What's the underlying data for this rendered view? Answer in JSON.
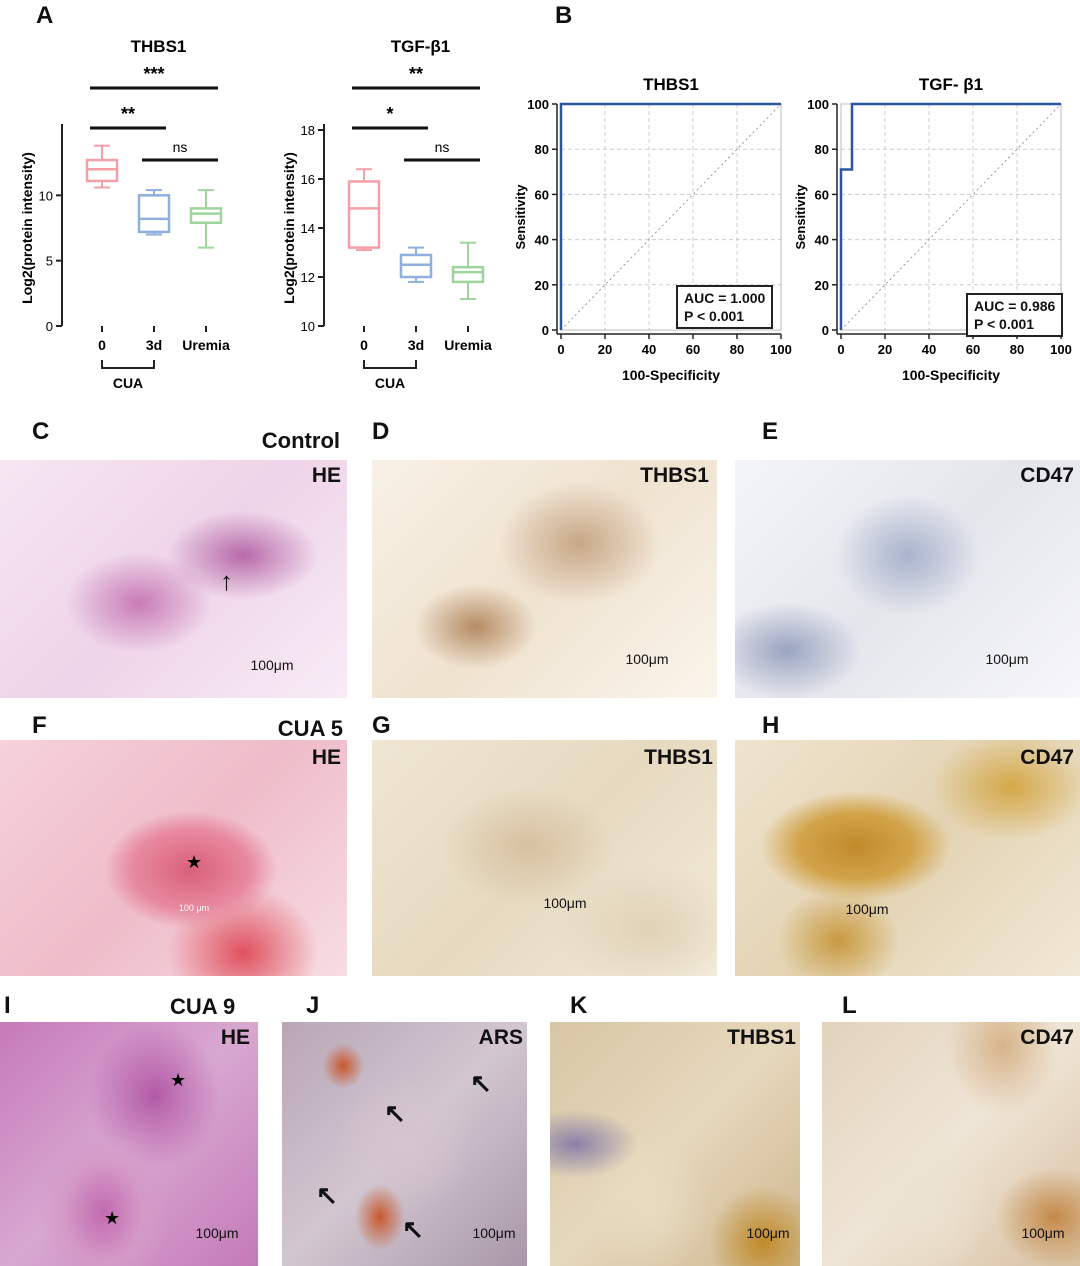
{
  "panels": {
    "A": "A",
    "B": "B",
    "C": "C",
    "D": "D",
    "E": "E",
    "F": "F",
    "G": "G",
    "H": "H",
    "I": "I",
    "J": "J",
    "K": "K",
    "L": "L"
  },
  "colors": {
    "day0": "#f4a0a6",
    "day3": "#8fb0de",
    "uremia": "#9fd49a",
    "roc": "#2a55a0"
  },
  "chart_data": [
    {
      "type": "box",
      "title": "THBS1",
      "ylabel": "Log2(protein intensity)",
      "ylim": [
        0,
        15
      ],
      "yticks": [
        "0",
        "5",
        "10"
      ],
      "categories": [
        "0",
        "3d",
        "Uremia"
      ],
      "group_label": "CUA",
      "boxes": [
        {
          "min": 10.6,
          "q1": 11.1,
          "median": 12.0,
          "q3": 12.7,
          "max": 13.8
        },
        {
          "min": 7.0,
          "q1": 7.2,
          "median": 8.2,
          "q3": 10.0,
          "max": 10.4
        },
        {
          "min": 6.0,
          "q1": 7.9,
          "median": 8.6,
          "q3": 9.0,
          "max": 10.4
        }
      ],
      "significance": [
        {
          "from": 0,
          "to": 2,
          "label": "***"
        },
        {
          "from": 0,
          "to": 1,
          "label": "**"
        },
        {
          "from": 1,
          "to": 2,
          "label": "ns"
        }
      ]
    },
    {
      "type": "box",
      "title": "TGF-β1",
      "ylabel": "Log2(protein intensity)",
      "ylim": [
        10,
        18
      ],
      "yticks": [
        "10",
        "12",
        "14",
        "16",
        "18"
      ],
      "categories": [
        "0",
        "3d",
        "Uremia"
      ],
      "group_label": "CUA",
      "boxes": [
        {
          "min": 13.1,
          "q1": 13.2,
          "median": 14.8,
          "q3": 15.9,
          "max": 16.4
        },
        {
          "min": 11.8,
          "q1": 12.0,
          "median": 12.5,
          "q3": 12.9,
          "max": 13.2
        },
        {
          "min": 11.1,
          "q1": 11.8,
          "median": 12.2,
          "q3": 12.4,
          "max": 13.4
        }
      ],
      "significance": [
        {
          "from": 0,
          "to": 2,
          "label": "**"
        },
        {
          "from": 0,
          "to": 1,
          "label": "*"
        },
        {
          "from": 1,
          "to": 2,
          "label": "ns"
        }
      ]
    },
    {
      "type": "line",
      "title": "THBS1",
      "xlabel": "100-Specificity",
      "ylabel": "Sensitivity",
      "xlim": [
        0,
        100
      ],
      "ylim": [
        0,
        100
      ],
      "ticks": [
        "0",
        "20",
        "40",
        "60",
        "80",
        "100"
      ],
      "x": [
        0,
        0,
        100
      ],
      "y": [
        0,
        100,
        100
      ],
      "auc_text": "AUC = 1.000",
      "p_text": "P < 0.001"
    },
    {
      "type": "line",
      "title": "TGF- β1",
      "xlabel": "100-Specificity",
      "ylabel": "Sensitivity",
      "xlim": [
        0,
        100
      ],
      "ylim": [
        0,
        100
      ],
      "ticks": [
        "0",
        "20",
        "40",
        "60",
        "80",
        "100"
      ],
      "x": [
        0,
        0,
        5,
        5,
        100
      ],
      "y": [
        0,
        71,
        71,
        100,
        100
      ],
      "auc_text": "AUC = 0.986",
      "p_text": "P < 0.001"
    }
  ],
  "images": {
    "C": {
      "group": "Control",
      "stain": "HE",
      "scale": "100μm"
    },
    "D": {
      "stain": "THBS1",
      "scale": "100μm"
    },
    "E": {
      "stain": "CD47",
      "scale": "100μm"
    },
    "F": {
      "group": "CUA 5",
      "stain": "HE",
      "scale": "100 μm"
    },
    "G": {
      "stain": "THBS1",
      "scale": "100μm"
    },
    "H": {
      "stain": "CD47",
      "scale": "100μm"
    },
    "I": {
      "group": "CUA 9",
      "stain": "HE",
      "scale": "100μm"
    },
    "J": {
      "stain": "ARS",
      "scale": "100μm"
    },
    "K": {
      "stain": "THBS1",
      "scale": "100μm"
    },
    "L": {
      "stain": "CD47",
      "scale": "100μm"
    }
  }
}
